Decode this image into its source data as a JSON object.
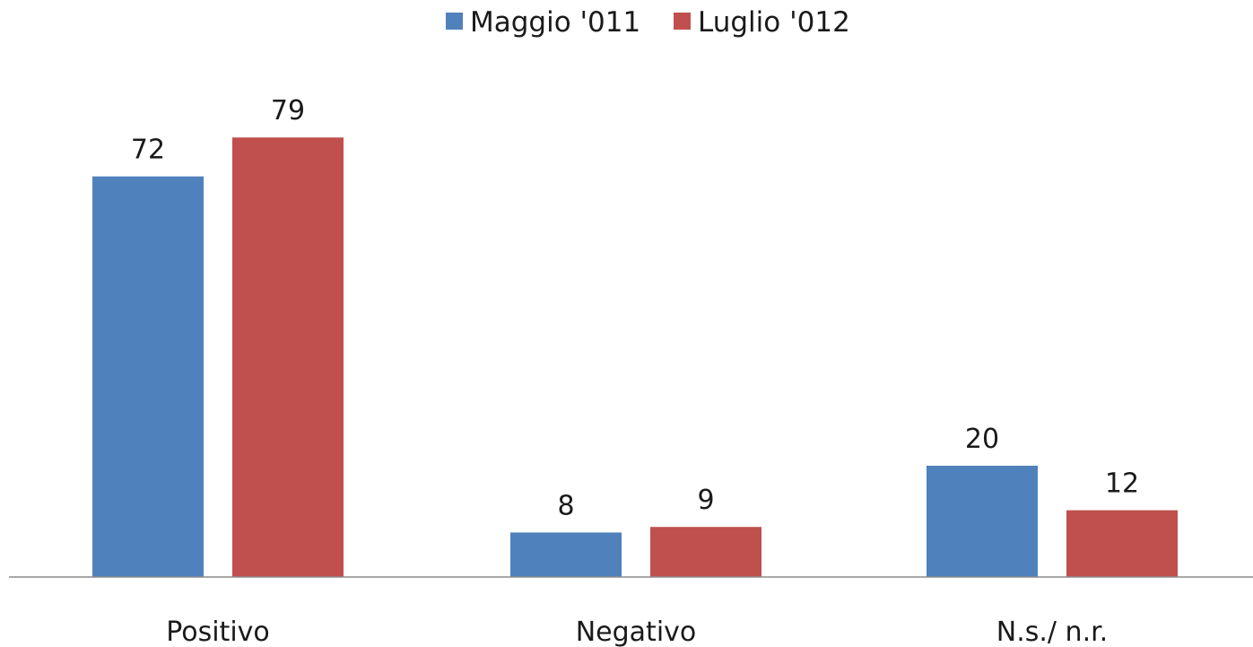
{
  "chart_data": {
    "type": "bar",
    "categories": [
      "Positivo",
      "Negativo",
      "N.s./ n.r."
    ],
    "series": [
      {
        "name": "Maggio '011",
        "values": [
          72,
          8,
          20
        ],
        "color": "#4f81bd"
      },
      {
        "name": "Luglio '012",
        "values": [
          79,
          9,
          12
        ],
        "color": "#c0504d"
      }
    ],
    "data_labels": true,
    "legend_position": "top",
    "grid": false,
    "show_y_axis": false,
    "ylim": [
      0,
      79
    ]
  }
}
